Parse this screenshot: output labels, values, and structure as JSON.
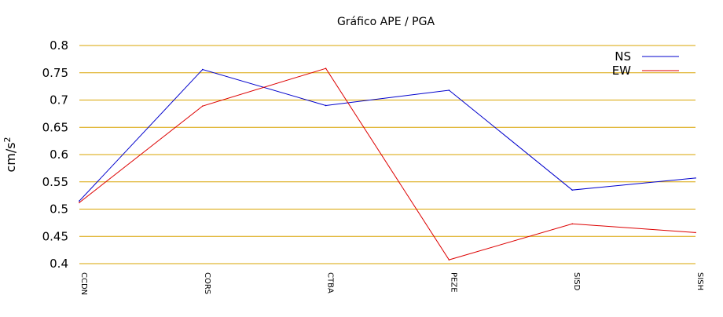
{
  "chart_data": {
    "type": "line",
    "title": "Gráfico  APE / PGA",
    "xlabel": "",
    "ylabel": "cm/s",
    "ylabel_superscript": "2",
    "categories": [
      "CCDN",
      "CORS",
      "CTBA",
      "PEZE",
      "SISD",
      "SISH"
    ],
    "ylim": [
      0.4,
      0.8
    ],
    "yticks": [
      "0.4",
      "0.45",
      "0.5",
      "0.55",
      "0.6",
      "0.65",
      "0.7",
      "0.75",
      "0.8"
    ],
    "grid": true,
    "grid_color": "#d9a400",
    "legend_placement": "top-right",
    "series": [
      {
        "name": "NS",
        "color": "#0000cc",
        "values": [
          0.515,
          0.756,
          0.69,
          0.718,
          0.535,
          0.557
        ]
      },
      {
        "name": "EW",
        "color": "#dd0000",
        "values": [
          0.512,
          0.689,
          0.758,
          0.407,
          0.473,
          0.457
        ]
      }
    ]
  }
}
